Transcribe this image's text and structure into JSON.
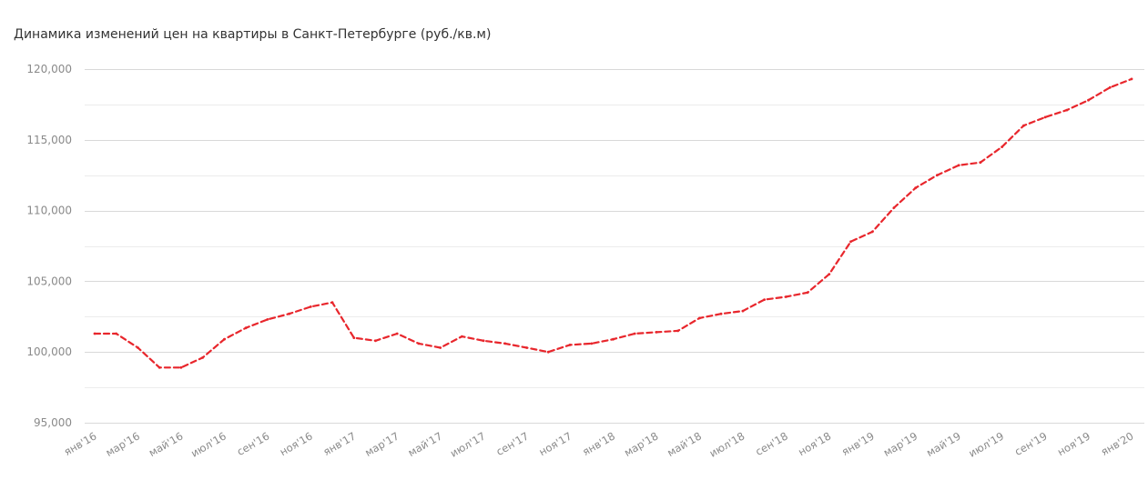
{
  "chart_data": {
    "type": "line",
    "title": "Динамика изменений цен на квартиры в Санкт-Петербурге (руб./кв.м)",
    "xlabel": "",
    "ylabel": "",
    "ylim": [
      95000,
      120000
    ],
    "y_ticks": [
      95000,
      100000,
      105000,
      110000,
      115000,
      120000
    ],
    "y_tick_labels": [
      "95,000",
      "100,000",
      "105,000",
      "110,000",
      "115,000",
      "120,000"
    ],
    "minor_grid_step": 2500,
    "grid": true,
    "legend": "none",
    "x_tick_labels": [
      "янв'16",
      "мар'16",
      "май'16",
      "июл'16",
      "сен'16",
      "ноя'16",
      "янв'17",
      "мар'17",
      "май'17",
      "июл'17",
      "сен'17",
      "ноя'17",
      "янв'18",
      "мар'18",
      "май'18",
      "июл'18",
      "сен'18",
      "ноя'18",
      "янв'19",
      "мар'19",
      "май'19",
      "июл'19",
      "сен'19",
      "ноя'19",
      "янв'20"
    ],
    "x": [
      "янв'16",
      "фев'16",
      "мар'16",
      "апр'16",
      "май'16",
      "июн'16",
      "июл'16",
      "авг'16",
      "сен'16",
      "окт'16",
      "ноя'16",
      "дек'16",
      "янв'17",
      "фев'17",
      "мар'17",
      "апр'17",
      "май'17",
      "июн'17",
      "июл'17",
      "авг'17",
      "сен'17",
      "окт'17",
      "ноя'17",
      "дек'17",
      "янв'18",
      "фев'18",
      "мар'18",
      "апр'18",
      "май'18",
      "июн'18",
      "июл'18",
      "авг'18",
      "сен'18",
      "окт'18",
      "ноя'18",
      "дек'18",
      "янв'19",
      "фев'19",
      "мар'19",
      "апр'19",
      "май'19",
      "июн'19",
      "июл'19",
      "авг'19",
      "сен'19",
      "окт'19",
      "ноя'19",
      "дек'19",
      "янв'20"
    ],
    "series": [
      {
        "color": "#e8262c",
        "style": "dashed",
        "values": [
          101300,
          101300,
          100300,
          98900,
          98900,
          99600,
          100900,
          101700,
          102300,
          102700,
          103200,
          103500,
          101000,
          100800,
          101300,
          100600,
          100300,
          101100,
          100800,
          100600,
          100300,
          100000,
          100500,
          100600,
          100900,
          101300,
          101400,
          101500,
          102400,
          102700,
          102900,
          103700,
          103900,
          104200,
          105500,
          107800,
          108500,
          110200,
          111600,
          112500,
          113200,
          113400,
          114500,
          116000,
          116600,
          117100,
          117800,
          118700,
          119300
        ]
      }
    ]
  }
}
